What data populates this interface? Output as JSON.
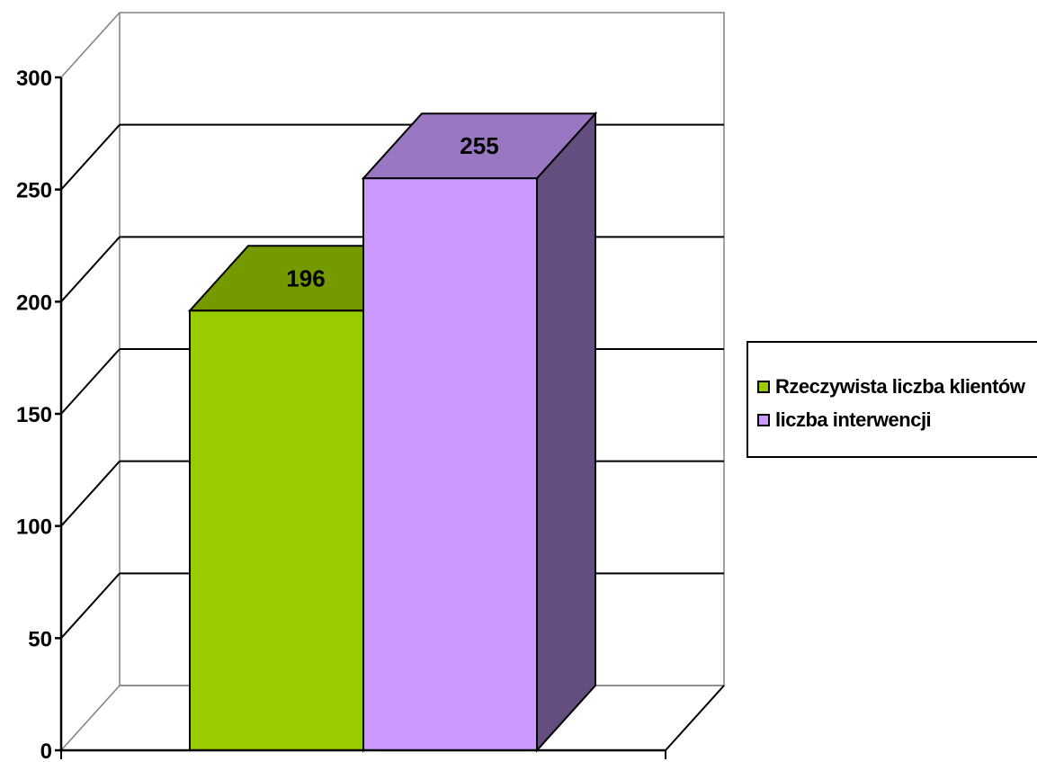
{
  "chart_data": {
    "type": "bar",
    "categories": [
      ""
    ],
    "series": [
      {
        "name": "Rzeczywista liczba klientów",
        "values": [
          196
        ],
        "color": "#99CC00",
        "top_color": "#759A00",
        "side_color": "#6E8F00"
      },
      {
        "name": "liczba interwencji",
        "values": [
          255
        ],
        "color": "#CC99FF",
        "top_color": "#9A77C3",
        "side_color": "#644E7F"
      }
    ],
    "data_labels": [
      "196",
      "255"
    ],
    "ylim": [
      0,
      300
    ],
    "yticks": [
      "0",
      "50",
      "100",
      "150",
      "200",
      "250",
      "300"
    ],
    "grid": true,
    "legend_position": "right",
    "style": "3d-column"
  }
}
